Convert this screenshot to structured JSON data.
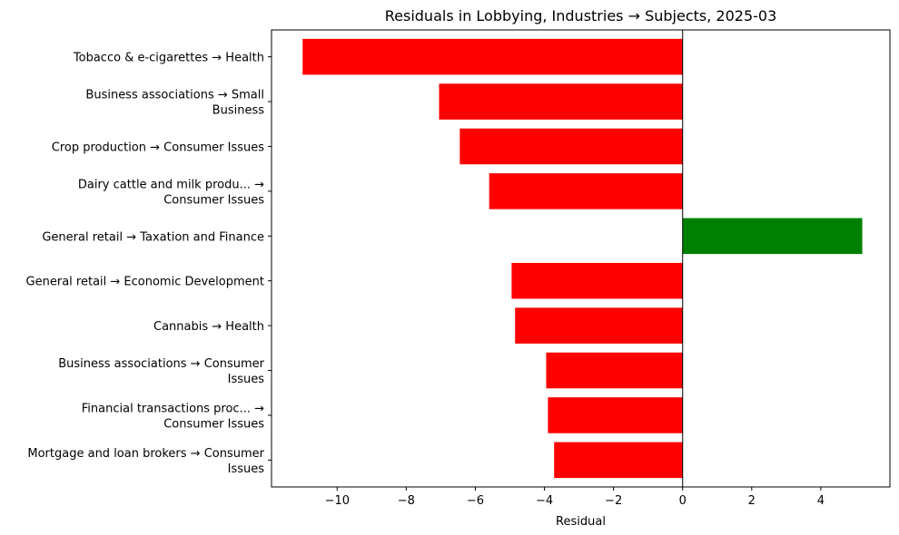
{
  "chart_data": {
    "type": "bar",
    "orientation": "horizontal",
    "title": "Residuals in Lobbying, Industries → Subjects, 2025-03",
    "xlabel": "Residual",
    "ylabel": "",
    "xlim": [
      -11.9,
      6.0
    ],
    "xticks": [
      -10,
      -8,
      -6,
      -4,
      -2,
      0,
      2,
      4
    ],
    "xtick_labels": [
      "−10",
      "−8",
      "−6",
      "−4",
      "−2",
      "0",
      "2",
      "4"
    ],
    "grid": false,
    "categories": [
      [
        "Tobacco & e-cigarettes → Health"
      ],
      [
        "Business associations → Small",
        "Business"
      ],
      [
        "Crop production → Consumer Issues"
      ],
      [
        "Dairy cattle and milk produ... →",
        "Consumer Issues"
      ],
      [
        "General retail → Taxation and Finance"
      ],
      [
        "General retail → Economic Development"
      ],
      [
        "Cannabis → Health"
      ],
      [
        "Business associations → Consumer",
        "Issues"
      ],
      [
        "Financial transactions proc... →",
        "Consumer Issues"
      ],
      [
        "Mortgage and loan brokers → Consumer",
        "Issues"
      ]
    ],
    "values": [
      -11.0,
      -7.05,
      -6.45,
      -5.6,
      5.2,
      -4.95,
      -4.85,
      -3.95,
      -3.9,
      -3.72
    ],
    "colors": {
      "negative": "#ff0000",
      "positive": "#008000"
    }
  }
}
